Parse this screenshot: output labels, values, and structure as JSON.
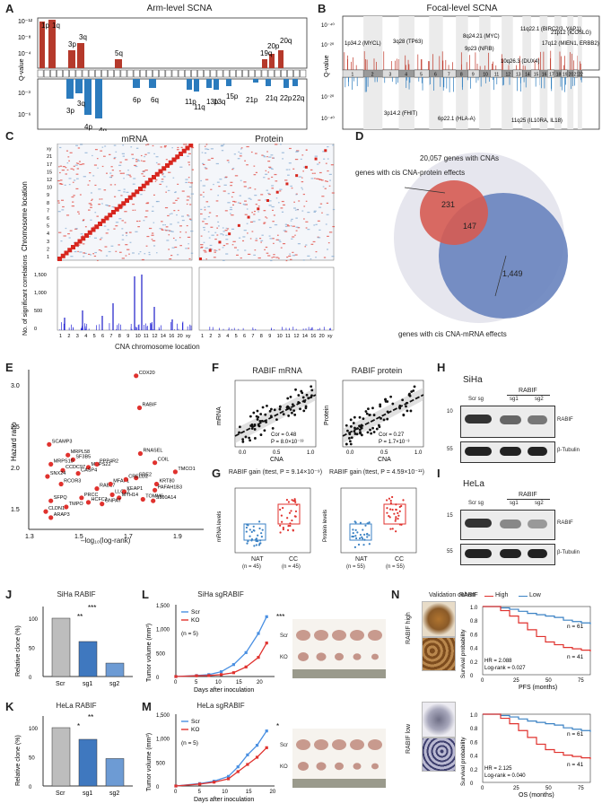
{
  "panel_labels": {
    "A": "A",
    "B": "B",
    "C": "C",
    "D": "D",
    "E": "E",
    "F": "F",
    "G": "G",
    "H": "H",
    "I": "I",
    "J": "J",
    "K": "K",
    "L": "L",
    "M": "M",
    "N": "N"
  },
  "panelA": {
    "title": "Arm-level SCNA",
    "ylabel": "Q-value",
    "top_ticks": [
      "10⁻¹²",
      "10⁻⁸",
      "10⁻⁴"
    ],
    "bottom_ticks": [
      "10⁻³",
      "10⁻⁶"
    ],
    "gain_labels": [
      "1p",
      "1q",
      "3p",
      "3q",
      "5q",
      "19q",
      "20p",
      "20q"
    ],
    "loss_labels": [
      "3p",
      "3q",
      "4p",
      "4q",
      "6p",
      "6q",
      "11p",
      "11q",
      "13p",
      "13q",
      "15p",
      "21p",
      "21q",
      "22p",
      "22q"
    ]
  },
  "panelB": {
    "title": "Focal-level SCNA",
    "ylabel": "Q-value",
    "top_ticks": [
      "10⁻⁴⁰",
      "10⁻²⁰"
    ],
    "bottom_ticks": [
      "10⁻²⁰",
      "10⁻⁴⁰"
    ],
    "chroms": [
      "1",
      "2",
      "3",
      "4",
      "5",
      "6",
      "7",
      "8",
      "9",
      "10",
      "11",
      "12",
      "13",
      "14",
      "15",
      "16",
      "17",
      "18",
      "19",
      "20",
      "21",
      "22"
    ],
    "gain_annot": [
      "1p34.2 (MYCL)",
      "3q28 (TP63)",
      "8q24.21 (MYC)",
      "9p23 (NFIB)",
      "11q22.1 (BIRC2/3, YAP1)",
      "10q26.3 (DUX4)",
      "17q12 (MIEN1, ERBB2)",
      "21p12 (ICOSLG)"
    ],
    "loss_annot": [
      "3p14.2 (FHIT)",
      "6p22.1 (HLA-A)",
      "11q25 (IL10RA, IL18)"
    ]
  },
  "panelC": {
    "mrna_title": "mRNA",
    "protein_title": "Protein",
    "ylabel_top": "Chromosome location",
    "ylabel_bottom": "No. of significant correlations",
    "xlabel": "CNA chromosome location",
    "x_ticks": [
      "1",
      "2",
      "3",
      "4",
      "5",
      "6",
      "7",
      "8",
      "9",
      "10",
      "11",
      "12",
      "14",
      "16",
      "20",
      "xy"
    ],
    "y_ticks": [
      "1",
      "2",
      "3",
      "4",
      "5",
      "6",
      "7",
      "8",
      "9",
      "10",
      "12",
      "15",
      "17",
      "21",
      "xy"
    ],
    "count_ticks": [
      "0",
      "500",
      "1,000",
      "1,500"
    ]
  },
  "panelD": {
    "total": "20,057 genes with CNAs",
    "protein_label": "genes with cis CNA-protein effects",
    "mrna_label": "genes with cis CNA-mRNA effects",
    "n_protein_only": "231",
    "n_both": "147",
    "n_mrna_only": "1,449"
  },
  "panelE": {
    "ylabel": "Hazard ratio",
    "xlabel": "–log₁₀(log-rank)",
    "x_ticks": [
      "1.3",
      "1.5",
      "1.7",
      "1.9"
    ],
    "y_ticks": [
      "1.5",
      "2.0",
      "2.5",
      "3.0"
    ],
    "genes": [
      "COX20",
      "RABIF",
      "RNASEL",
      "COIL",
      "TMCO1",
      "SDE2",
      "KRT80",
      "PAFAH1B3",
      "SCAMP3",
      "MRPL58",
      "SF3B5",
      "MRPS10",
      "CCDC97",
      "MRPS22",
      "PPP4R2",
      "CASP4",
      "SNX24",
      "RCOR3",
      "RAB17",
      "MFAP1",
      "CRELD2",
      "LLGL2",
      "KEAP1",
      "MYH14",
      "TOMM6",
      "S100A14",
      "SFPQ",
      "PRCC",
      "HCFC1",
      "GNPAT",
      "CLDN1",
      "TMPO",
      "ARAP3"
    ]
  },
  "panelF": {
    "mrna_title": "RABIF mRNA",
    "protein_title": "RABIF protein",
    "xlabel": "CNA",
    "ylabel_mrna": "mRNA",
    "ylabel_protein": "Protein",
    "mrna_stats": [
      "Cor = 0.48",
      "P = 8.0×10⁻¹³"
    ],
    "protein_stats": [
      "Cor = 0.27",
      "P = 1.7×10⁻³"
    ],
    "x_ticks": [
      "0.0",
      "0.5",
      "1.0"
    ]
  },
  "panelG": {
    "mrna_title": "RABIF gain (ttest, P = 9.14×10⁻⁹)",
    "protein_title": "RABIF gain (ttest, P = 4.59×10⁻¹¹)",
    "ylabel_mrna": "mRNA levels",
    "ylabel_protein": "Protein levels",
    "groups_mrna": [
      "NAT",
      "CC"
    ],
    "n_mrna": [
      "(n = 45)",
      "(n = 45)"
    ],
    "groups_protein": [
      "NAT",
      "CC"
    ],
    "n_protein": [
      "(n = 55)",
      "(n = 55)"
    ]
  },
  "panelH": {
    "cell": "SiHa",
    "group": "RABIF",
    "lanes": [
      "Scr sg",
      "sg1",
      "sg2"
    ],
    "bands": [
      "RABIF",
      "β-Tubulin"
    ],
    "mw": [
      "10",
      "55"
    ]
  },
  "panelI": {
    "cell": "HeLa",
    "group": "RABIF",
    "lanes": [
      "Scr sg",
      "sg1",
      "sg2"
    ],
    "bands": [
      "RABIF",
      "β-Tubulin"
    ],
    "mw": [
      "15",
      "55"
    ]
  },
  "panelJ": {
    "title": "SiHa RABIF",
    "ylabel": "Relative clone (%)",
    "categories": [
      "Scr",
      "sg1",
      "sg2"
    ],
    "values": [
      100,
      60,
      23
    ],
    "sig": [
      "**",
      "***"
    ]
  },
  "panelK": {
    "title": "HeLa RABIF",
    "ylabel": "Relative clone (%)",
    "categories": [
      "Scr",
      "sg1",
      "sg2"
    ],
    "values": [
      100,
      80,
      47
    ],
    "sig": [
      "*",
      "**"
    ]
  },
  "panelL": {
    "title": "SiHa sgRABIF",
    "ylabel": "Tumor volume (mm³)",
    "xlabel": "Days after inoculation",
    "legend": [
      "Scr",
      "KO"
    ],
    "n": "(n = 5)",
    "sig": "***",
    "photo_labels": [
      "Scr",
      "KO"
    ]
  },
  "panelM": {
    "title": "HeLa sgRABIF",
    "ylabel": "Tumor volume (mm³)",
    "xlabel": "Days after inoculation",
    "legend": [
      "Scr",
      "KO"
    ],
    "n": "(n = 5)",
    "sig": "*",
    "photo_labels": [
      "Scr",
      "KO"
    ]
  },
  "panelN": {
    "cohort": "Validation cohort",
    "high": "RABIF high",
    "low": "RABIF low",
    "legend_title": "RABIF",
    "legend": [
      "High",
      "Low"
    ],
    "ylabel": "Survival probability",
    "pfs_xlabel": "PFS (months)",
    "os_xlabel": "OS (months)",
    "pfs_stats": [
      "HR = 2.088",
      "Log-rank = 0.027"
    ],
    "os_stats": [
      "HR = 2.125",
      "Log-rank = 0.040"
    ],
    "n_low": "n = 61",
    "n_high": "n = 41"
  },
  "chart_data": [
    {
      "type": "bar",
      "title": "SiHa RABIF",
      "categories": [
        "Scr",
        "sg1",
        "sg2"
      ],
      "values": [
        100,
        60,
        23
      ],
      "ylabel": "Relative clone (%)",
      "ylim": [
        0,
        120
      ]
    },
    {
      "type": "bar",
      "title": "HeLa RABIF",
      "categories": [
        "Scr",
        "sg1",
        "sg2"
      ],
      "values": [
        100,
        80,
        47
      ],
      "ylabel": "Relative clone (%)",
      "ylim": [
        0,
        120
      ]
    },
    {
      "type": "line",
      "title": "SiHa sgRABIF",
      "x": [
        0,
        5,
        8,
        11,
        14,
        17,
        20,
        22
      ],
      "series": [
        {
          "name": "Scr",
          "values": [
            0,
            20,
            40,
            100,
            250,
            500,
            900,
            1250
          ]
        },
        {
          "name": "KO",
          "values": [
            0,
            15,
            20,
            40,
            80,
            200,
            400,
            700
          ]
        }
      ],
      "xlabel": "Days after inoculation",
      "ylabel": "Tumor volume (mm³)",
      "ylim": [
        0,
        1500
      ]
    },
    {
      "type": "line",
      "title": "HeLa sgRABIF",
      "x": [
        0,
        5,
        8,
        11,
        13,
        15,
        17,
        19
      ],
      "series": [
        {
          "name": "Scr",
          "values": [
            0,
            50,
            100,
            200,
            400,
            650,
            850,
            1150
          ]
        },
        {
          "name": "KO",
          "values": [
            0,
            40,
            80,
            150,
            300,
            450,
            600,
            800
          ]
        }
      ],
      "xlabel": "Days after inoculation",
      "ylabel": "Tumor volume (mm³)",
      "ylim": [
        0,
        1500
      ]
    }
  ]
}
